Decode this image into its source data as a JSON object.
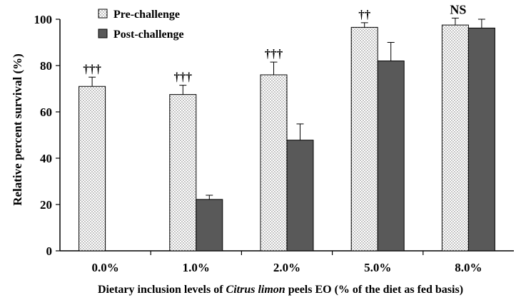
{
  "chart_data": {
    "type": "bar",
    "categories": [
      "0.0%",
      "1.0%",
      "2.0%",
      "5.0%",
      "8.0%"
    ],
    "series": [
      {
        "name": "Pre-challenge",
        "values": [
          71.0,
          67.5,
          76.0,
          96.5,
          97.5
        ],
        "errors": [
          4.0,
          4.0,
          5.5,
          2.0,
          3.0
        ],
        "pattern": "dotted",
        "color": "#ffffff"
      },
      {
        "name": "Post-challenge",
        "values": [
          0,
          22.2,
          47.8,
          82.0,
          96.2
        ],
        "errors": [
          0,
          1.8,
          7.0,
          8.0,
          3.8
        ],
        "pattern": "solid",
        "color": "#595959"
      }
    ],
    "annotations": [
      "†††",
      "†††",
      "†††",
      "††",
      "NS"
    ],
    "ylabel": "Relative percent survival (%)",
    "xlabel": {
      "before": "Dietary inclusion levels of ",
      "italic": "Citrus limon",
      "after": " peels EO (% of the diet as fed basis)"
    },
    "ylim": [
      0,
      100
    ],
    "yticks": [
      0,
      20,
      40,
      60,
      80,
      100
    ],
    "legend_position": "top-left",
    "grid": false
  }
}
